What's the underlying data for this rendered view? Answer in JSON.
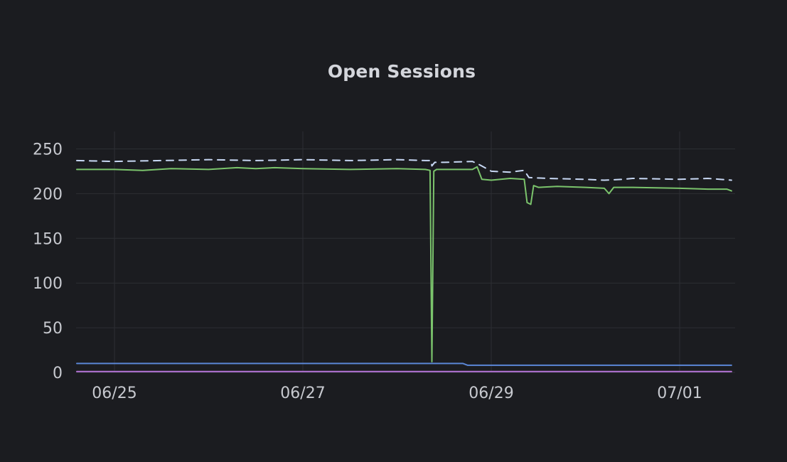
{
  "chart_data": {
    "type": "line",
    "title": "Open Sessions",
    "xlabel": "",
    "ylabel": "",
    "ylim": [
      0,
      262
    ],
    "xlim_days": [
      -0.25,
      6.75
    ],
    "x_ticks": [
      {
        "day": 0,
        "label": "06/25"
      },
      {
        "day": 2,
        "label": "06/27"
      },
      {
        "day": 4,
        "label": "06/29"
      },
      {
        "day": 6,
        "label": "07/01"
      }
    ],
    "y_ticks": [
      0,
      50,
      100,
      150,
      200,
      250
    ],
    "grid": true,
    "colors": {
      "background": "#1b1c20",
      "grid": "#2c2e33",
      "axis_text": "#c7c9cf",
      "title": "#d4d6dc"
    },
    "series": [
      {
        "style": "dashed",
        "color": "#c8d8f4",
        "x": [
          -0.4,
          0.0,
          0.5,
          1.0,
          1.5,
          2.0,
          2.5,
          3.0,
          3.3,
          3.36,
          3.37,
          3.4,
          3.5,
          3.8,
          3.88,
          4.0,
          4.2,
          4.35,
          4.4,
          4.6,
          5.0,
          5.2,
          5.4,
          5.5,
          6.0,
          6.3,
          6.55
        ],
        "y": [
          237,
          236,
          237,
          238,
          237,
          238,
          237,
          238,
          237,
          237,
          231,
          235,
          235,
          236,
          232,
          225,
          224,
          226,
          218,
          217,
          216,
          215,
          216,
          217,
          216,
          217,
          215
        ]
      },
      {
        "style": "solid",
        "color": "#7bc46c",
        "x": [
          -0.4,
          0.0,
          0.3,
          0.6,
          1.0,
          1.3,
          1.5,
          1.7,
          2.0,
          2.5,
          3.0,
          3.3,
          3.35,
          3.37,
          3.39,
          3.42,
          3.5,
          3.8,
          3.85,
          3.9,
          4.0,
          4.2,
          4.35,
          4.38,
          4.42,
          4.45,
          4.5,
          4.7,
          5.0,
          5.2,
          5.25,
          5.3,
          5.5,
          6.0,
          6.3,
          6.5,
          6.55
        ],
        "y": [
          227,
          227,
          226,
          228,
          227,
          229,
          228,
          229,
          228,
          227,
          228,
          227,
          226,
          12,
          225,
          227,
          227,
          227,
          230,
          216,
          215,
          217,
          216,
          190,
          188,
          209,
          207,
          208,
          207,
          206,
          200,
          207,
          207,
          206,
          205,
          205,
          203
        ]
      },
      {
        "style": "solid",
        "color": "#5b86d6",
        "x": [
          -0.4,
          3.7,
          3.75,
          6.55
        ],
        "y": [
          10,
          10,
          8,
          8
        ]
      },
      {
        "style": "solid",
        "color": "#b775d9",
        "x": [
          -0.4,
          6.55
        ],
        "y": [
          1,
          1
        ]
      }
    ]
  }
}
